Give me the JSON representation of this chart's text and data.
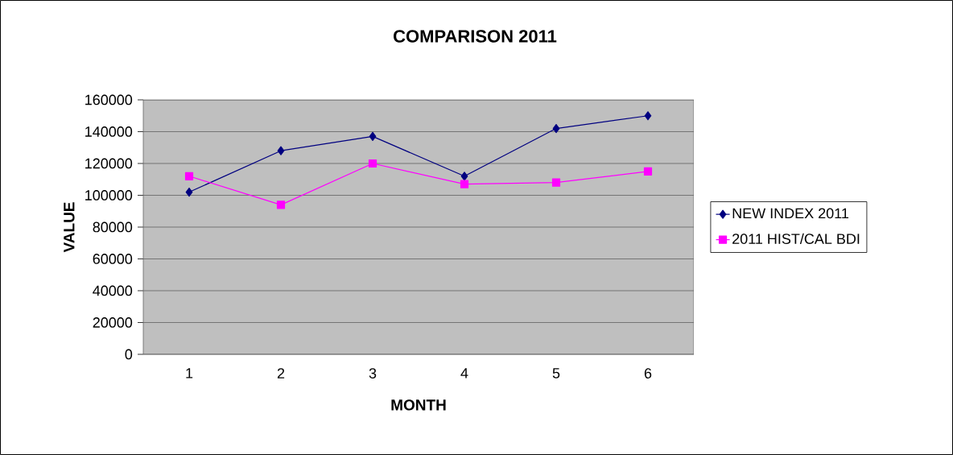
{
  "chart_data": {
    "type": "line",
    "title": "COMPARISON 2011",
    "xlabel": "MONTH",
    "ylabel": "VALUE",
    "categories": [
      "1",
      "2",
      "3",
      "4",
      "5",
      "6"
    ],
    "series": [
      {
        "name": "NEW INDEX 2011",
        "color": "#000080",
        "marker": "diamond",
        "values": [
          102000,
          128000,
          137000,
          112000,
          142000,
          150000
        ]
      },
      {
        "name": "2011 HIST/CAL BDI",
        "color": "#ff00ff",
        "marker": "square",
        "values": [
          112000,
          94000,
          120000,
          107000,
          108000,
          115000
        ]
      }
    ],
    "ylim": [
      0,
      160000
    ],
    "yticks": [
      0,
      20000,
      40000,
      60000,
      80000,
      100000,
      120000,
      140000,
      160000
    ],
    "grid": "y",
    "legend": "right",
    "line_style": "solid"
  }
}
